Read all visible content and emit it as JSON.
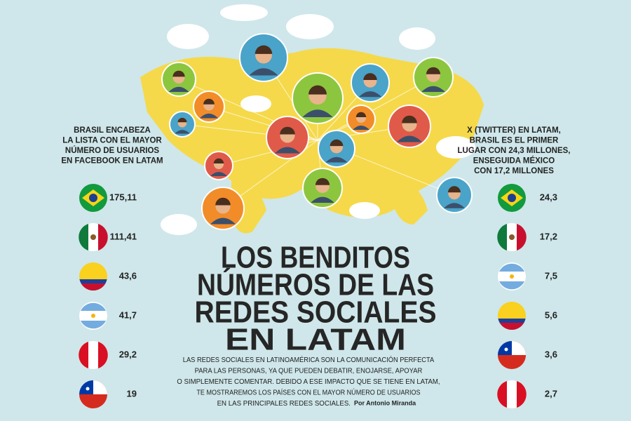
{
  "left": {
    "heading": [
      "BRASIL ENCABEZA",
      "LA LISTA CON EL MAYOR",
      "NÚMERO DE USUARIOS",
      "EN FACEBOOK EN LATAM"
    ],
    "values": [
      "175,11",
      "111,41",
      "43,6",
      "41,7",
      "29,2",
      "19"
    ]
  },
  "right": {
    "heading": [
      "X (TWITTER) EN LATAM,",
      "BRASIL ES EL PRIMER",
      "LUGAR CON 24,3 MILLONES,",
      "ENSEGUIDA MÉXICO",
      "CON 17,2 MILLONES"
    ],
    "values": [
      "24,3",
      "17,2",
      "7,5",
      "5,6",
      "3,6",
      "2,7"
    ]
  },
  "title": [
    "LOS BENDITOS",
    "NÚMEROS DE LAS",
    "REDES SOCIALES",
    "EN LATAM"
  ],
  "body": [
    "LAS REDES SOCIALES EN LATINOAMÉRICA SON LA COMUNICACIÓN PERFECTA",
    "PARA LAS PERSONAS, YA QUE PUEDEN DEBATIR, ENOJARSE, APOYAR",
    "O SIMPLEMENTE COMENTAR. DEBIDO A ESE IMPACTO QUE SE TIENE EN LATAM,",
    "TE MOSTRAREMOS LOS PAÍSES CON EL MAYOR NÚMERO DE USUARIOS",
    "EN LAS PRINCIPALES REDES SOCIALES."
  ],
  "byline": "Por Antonio Miranda"
}
